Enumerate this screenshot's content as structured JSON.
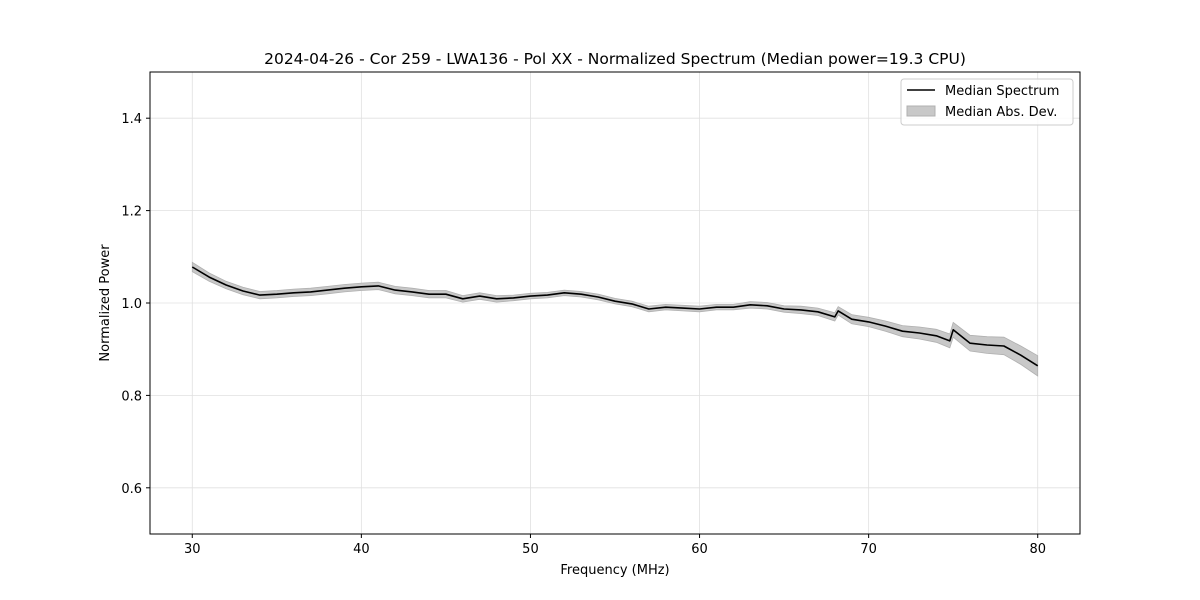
{
  "chart_data": {
    "type": "line",
    "title": "2024-04-26 - Cor 259 - LWA136 - Pol XX - Normalized Spectrum (Median power=19.3 CPU)",
    "xlabel": "Frequency (MHz)",
    "ylabel": "Normalized Power",
    "xlim": [
      27.5,
      82.5
    ],
    "ylim": [
      0.5,
      1.5
    ],
    "xticks": [
      30,
      40,
      50,
      60,
      70,
      80
    ],
    "yticks": [
      0.6,
      0.8,
      1.0,
      1.2,
      1.4
    ],
    "xtick_labels": [
      "30",
      "40",
      "50",
      "60",
      "70",
      "80"
    ],
    "ytick_labels": [
      "0.6",
      "0.8",
      "1.0",
      "1.2",
      "1.4"
    ],
    "grid": true,
    "legend_position": "top-right",
    "legend": [
      "Median Spectrum",
      "Median Abs. Dev."
    ],
    "colors": {
      "line": "#000000",
      "band": "#c8c8c8",
      "band_edge": "#aaaaaa",
      "grid": "#e0e0e0"
    },
    "series": [
      {
        "name": "Median Spectrum",
        "x": [
          30,
          31,
          32,
          33,
          34,
          35,
          36,
          37,
          38,
          39,
          40,
          41,
          42,
          43,
          44,
          45,
          46,
          47,
          48,
          49,
          50,
          51,
          52,
          53,
          54,
          55,
          56,
          57,
          58,
          59,
          60,
          61,
          62,
          63,
          64,
          65,
          66,
          67,
          68,
          68.2,
          69,
          70,
          71,
          72,
          73,
          74,
          74.8,
          75,
          76,
          77,
          78,
          79,
          80
        ],
        "y": [
          1.078,
          1.056,
          1.039,
          1.026,
          1.017,
          1.019,
          1.022,
          1.024,
          1.028,
          1.032,
          1.035,
          1.037,
          1.028,
          1.024,
          1.019,
          1.019,
          1.009,
          1.015,
          1.009,
          1.011,
          1.015,
          1.017,
          1.022,
          1.019,
          1.013,
          1.004,
          0.998,
          0.987,
          0.991,
          0.989,
          0.987,
          0.991,
          0.991,
          0.996,
          0.994,
          0.987,
          0.985,
          0.981,
          0.97,
          0.983,
          0.965,
          0.959,
          0.95,
          0.939,
          0.935,
          0.929,
          0.918,
          0.942,
          0.913,
          0.909,
          0.907,
          0.887,
          0.864
        ],
        "mad": [
          0.01,
          0.009,
          0.008,
          0.008,
          0.008,
          0.008,
          0.008,
          0.008,
          0.008,
          0.008,
          0.008,
          0.008,
          0.008,
          0.008,
          0.008,
          0.008,
          0.007,
          0.007,
          0.007,
          0.006,
          0.006,
          0.006,
          0.006,
          0.006,
          0.006,
          0.006,
          0.006,
          0.006,
          0.006,
          0.006,
          0.006,
          0.006,
          0.006,
          0.007,
          0.007,
          0.007,
          0.008,
          0.008,
          0.009,
          0.009,
          0.01,
          0.01,
          0.011,
          0.012,
          0.013,
          0.014,
          0.015,
          0.016,
          0.017,
          0.018,
          0.019,
          0.02,
          0.022
        ]
      }
    ]
  }
}
